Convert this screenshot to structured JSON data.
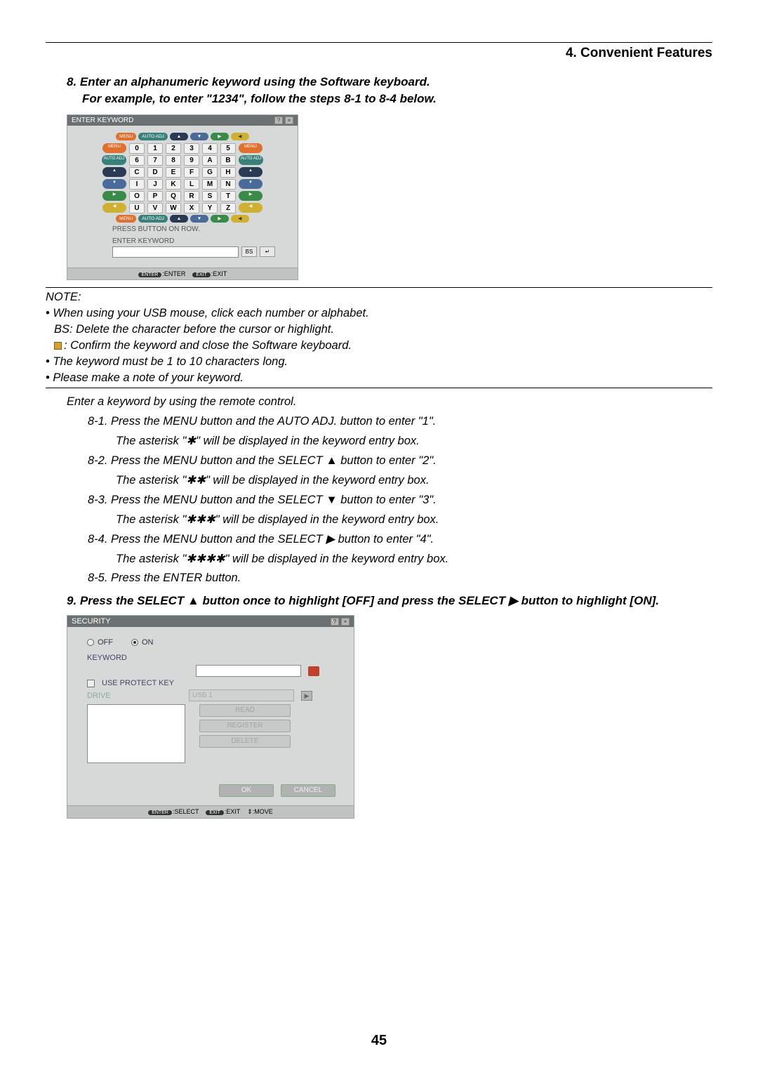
{
  "header": {
    "section": "4. Convenient Features"
  },
  "step8": {
    "line1": "8.  Enter an alphanumeric keyword using the Software keyboard.",
    "line2": "For example, to enter \"1234\", follow the steps 8-1 to 8-4 below."
  },
  "kbd": {
    "title": "ENTER KEYWORD",
    "nav_top": [
      "MENU",
      "AUTO ADJ",
      "▲",
      "▼",
      "▶",
      "◀"
    ],
    "nav_bottom": [
      "MENU",
      "AUTO ADJ",
      "▲",
      "▼",
      "▶",
      "◀"
    ],
    "pill_colors_top": [
      "#e07030",
      "#3a807a",
      "#2a3a55",
      "#4a6a9a",
      "#3a8a4a",
      "#d0b030"
    ],
    "left_pills": [
      "MENU",
      "AUTO ADJ",
      "▲",
      "▼",
      "▶",
      "◀"
    ],
    "right_pills": [
      "MENU",
      "AUTO ADJ",
      "▲",
      "▼",
      "▶",
      "◀"
    ],
    "side_colors": [
      "#e07030",
      "#3a807a",
      "#2a3a55",
      "#4a6a9a",
      "#3a8a4a",
      "#d0b030"
    ],
    "rows": [
      [
        "0",
        "1",
        "2",
        "3",
        "4",
        "5"
      ],
      [
        "6",
        "7",
        "8",
        "9",
        "A",
        "B"
      ],
      [
        "C",
        "D",
        "E",
        "F",
        "G",
        "H"
      ],
      [
        "I",
        "J",
        "K",
        "L",
        "M",
        "N"
      ],
      [
        "O",
        "P",
        "Q",
        "R",
        "S",
        "T"
      ],
      [
        "U",
        "V",
        "W",
        "X",
        "Y",
        "Z"
      ]
    ],
    "press_label": "PRESS BUTTON ON ROW.",
    "enter_label": "ENTER KEYWORD",
    "bs": "BS",
    "ret": "↵",
    "footer_enter": "ENTER",
    "footer_enter_a": ":ENTER",
    "footer_exit": "EXIT",
    "footer_exit_a": ":EXIT"
  },
  "note": {
    "title": "NOTE:",
    "b1": "• When using your USB mouse, click each number or alphabet.",
    "b1a": "BS: Delete the character before the cursor or highlight.",
    "b1b": ": Confirm the keyword and close the Software keyboard.",
    "b2": "• The keyword must be 1 to 10 characters long.",
    "b3": "• Please make a note of your keyword."
  },
  "after_note": "Enter a keyword by using the remote control.",
  "steps": {
    "s81a": "8-1.  Press the MENU button and the AUTO ADJ. button to enter \"1\".",
    "s81b": "The asterisk \"✱\" will be displayed in the keyword entry box.",
    "s82a": "8-2.  Press the MENU button and the SELECT ▲ button to enter \"2\".",
    "s82b": "The asterisk \"✱✱\" will be displayed in the keyword entry box.",
    "s83a": "8-3.  Press the MENU button and the SELECT ▼ button to enter \"3\".",
    "s83b": "The asterisk \"✱✱✱\" will be displayed in the keyword entry box.",
    "s84a": "8-4.  Press the MENU button and the SELECT ▶ button to enter \"4\".",
    "s84b": "The asterisk \"✱✱✱✱\" will be displayed in the keyword entry box.",
    "s85": "8-5.  Press the ENTER button."
  },
  "step9": "9.  Press the SELECT ▲ button once to highlight [OFF] and press the SELECT ▶ button to highlight [ON].",
  "security": {
    "title": "SECURITY",
    "off": "OFF",
    "on": "ON",
    "keyword": "KEYWORD",
    "use_protect": "USE PROTECT KEY",
    "drive": "DRIVE",
    "drive_val": "USB 1",
    "btns": [
      "READ",
      "REGISTER",
      "DELETE"
    ],
    "ok": "OK",
    "cancel": "CANCEL",
    "foot_sel": ":SELECT",
    "foot_exit": ":EXIT",
    "foot_move": ":MOVE",
    "chip_enter": "ENTER",
    "chip_exit": "EXIT",
    "chip_move": "⇕"
  },
  "page": "45"
}
